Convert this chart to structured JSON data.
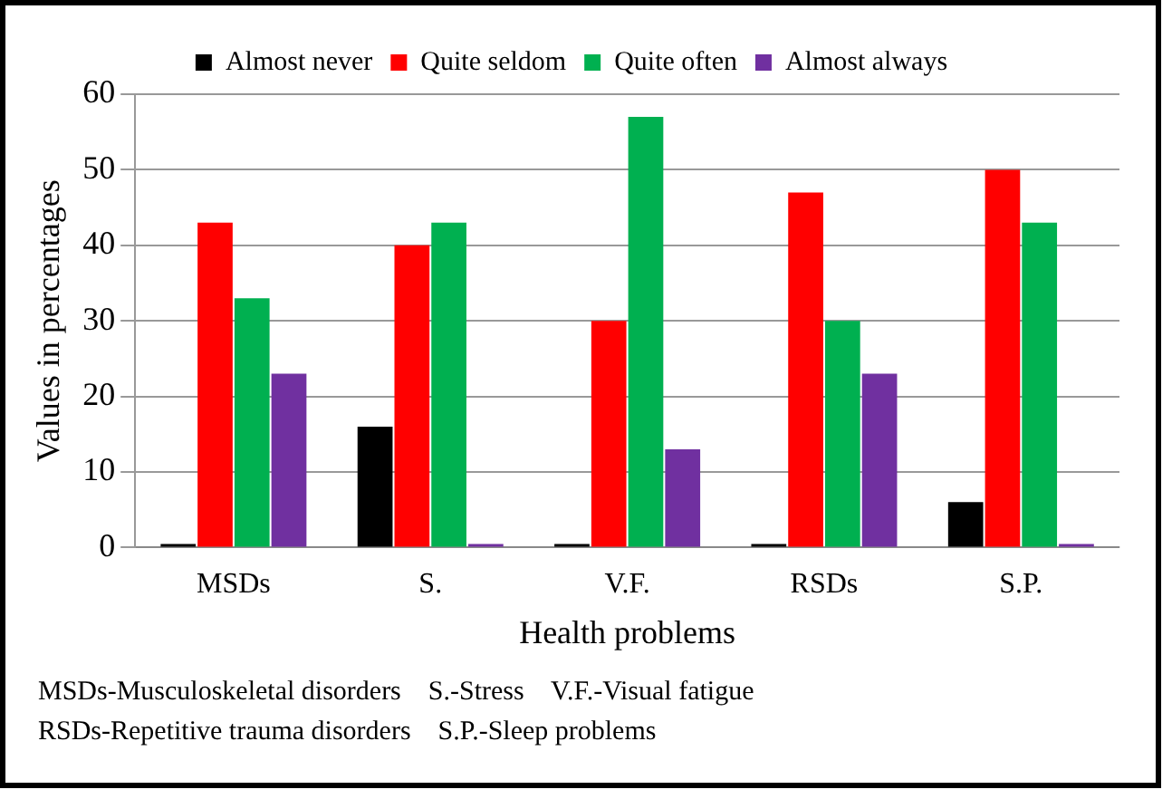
{
  "chart_data": {
    "type": "bar",
    "xlabel": "Health problems",
    "ylabel": "Values in percentages",
    "categories": [
      "MSDs",
      "S.",
      "V.F.",
      "RSDs",
      "S.P."
    ],
    "series": [
      {
        "name": "Almost never",
        "color": "#000000",
        "values": [
          0,
          16,
          0,
          0,
          6
        ]
      },
      {
        "name": "Quite seldom",
        "color": "#ff0000",
        "values": [
          43,
          40,
          30,
          47,
          50
        ]
      },
      {
        "name": "Quite often",
        "color": "#00b050",
        "values": [
          33,
          43,
          57,
          30,
          43
        ]
      },
      {
        "name": "Almost always",
        "color": "#7030a0",
        "values": [
          23,
          0,
          13,
          23,
          0
        ]
      }
    ],
    "ylim": [
      0,
      60
    ],
    "yticks": [
      0,
      10,
      20,
      30,
      40,
      50,
      60
    ],
    "grid": "y",
    "legend": "top",
    "annotations": [
      "MSDs-Musculoskeletal disorders    S.-Stress    V.F.-Visual fatigue",
      "RSDs-Repetitive trauma disorders    S.P.-Sleep problems"
    ]
  }
}
